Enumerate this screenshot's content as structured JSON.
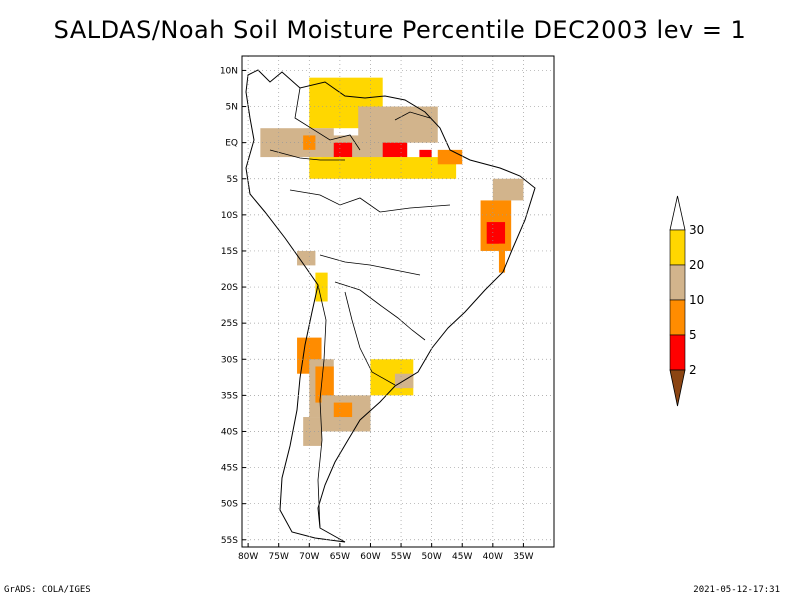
{
  "title": "SALDAS/Noah Soil Moisture Percentile DEC2003 lev = 1",
  "footer": {
    "left": "GrADS: COLA/IGES",
    "right": "2021-05-12-17:31"
  },
  "map": {
    "lon_range": [
      -81,
      -30
    ],
    "lat_range": [
      -56,
      12
    ],
    "lat_ticks": [
      {
        "value": 10,
        "label": "10N"
      },
      {
        "value": 5,
        "label": "5N"
      },
      {
        "value": 0,
        "label": "EQ"
      },
      {
        "value": -5,
        "label": "5S"
      },
      {
        "value": -10,
        "label": "10S"
      },
      {
        "value": -15,
        "label": "15S"
      },
      {
        "value": -20,
        "label": "20S"
      },
      {
        "value": -25,
        "label": "25S"
      },
      {
        "value": -30,
        "label": "30S"
      },
      {
        "value": -35,
        "label": "35S"
      },
      {
        "value": -40,
        "label": "40S"
      },
      {
        "value": -45,
        "label": "45S"
      },
      {
        "value": -50,
        "label": "50S"
      },
      {
        "value": -55,
        "label": "55S"
      }
    ],
    "lon_ticks": [
      {
        "value": -80,
        "label": "80W"
      },
      {
        "value": -75,
        "label": "75W"
      },
      {
        "value": -70,
        "label": "70W"
      },
      {
        "value": -65,
        "label": "65W"
      },
      {
        "value": -60,
        "label": "60W"
      },
      {
        "value": -55,
        "label": "55W"
      },
      {
        "value": -50,
        "label": "50W"
      },
      {
        "value": -45,
        "label": "45W"
      },
      {
        "value": -40,
        "label": "40W"
      },
      {
        "value": -35,
        "label": "35W"
      }
    ],
    "grid": true,
    "regions": [
      {
        "lon": [
          -70,
          -58
        ],
        "lat": [
          9,
          2
        ],
        "band": "p20_30"
      },
      {
        "lon": [
          -78,
          -66
        ],
        "lat": [
          2,
          -2
        ],
        "band": "p10_20"
      },
      {
        "lon": [
          -71,
          -69
        ],
        "lat": [
          1,
          -1
        ],
        "band": "p5_10"
      },
      {
        "lon": [
          -68,
          -60
        ],
        "lat": [
          1,
          -3
        ],
        "band": "p10_20"
      },
      {
        "lon": [
          -66,
          -63
        ],
        "lat": [
          0,
          -2
        ],
        "band": "p2_5"
      },
      {
        "lon": [
          -62,
          -54
        ],
        "lat": [
          5,
          -4
        ],
        "band": "p10_20"
      },
      {
        "lon": [
          -55,
          -49
        ],
        "lat": [
          5,
          0
        ],
        "band": "p10_20"
      },
      {
        "lon": [
          -58,
          -54
        ],
        "lat": [
          0,
          -2
        ],
        "band": "p2_5"
      },
      {
        "lon": [
          -52,
          -50
        ],
        "lat": [
          -1,
          -3
        ],
        "band": "p2_5"
      },
      {
        "lon": [
          -70,
          -46
        ],
        "lat": [
          -2,
          -5
        ],
        "band": "p20_30"
      },
      {
        "lon": [
          -49,
          -45
        ],
        "lat": [
          -1,
          -3
        ],
        "band": "p5_10"
      },
      {
        "lon": [
          -40,
          -35
        ],
        "lat": [
          -5,
          -8
        ],
        "band": "p10_20"
      },
      {
        "lon": [
          -42,
          -37
        ],
        "lat": [
          -8,
          -15
        ],
        "band": "p5_10"
      },
      {
        "lon": [
          -41,
          -38
        ],
        "lat": [
          -11,
          -14
        ],
        "band": "p2_5"
      },
      {
        "lon": [
          -39,
          -38
        ],
        "lat": [
          -14,
          -18
        ],
        "band": "p5_10"
      },
      {
        "lon": [
          -72,
          -69
        ],
        "lat": [
          -15,
          -17
        ],
        "band": "p10_20"
      },
      {
        "lon": [
          -69,
          -67
        ],
        "lat": [
          -18,
          -22
        ],
        "band": "p20_30"
      },
      {
        "lon": [
          -72,
          -68
        ],
        "lat": [
          -27,
          -32
        ],
        "band": "p5_10"
      },
      {
        "lon": [
          -70,
          -66
        ],
        "lat": [
          -30,
          -38
        ],
        "band": "p10_20"
      },
      {
        "lon": [
          -69,
          -66
        ],
        "lat": [
          -31,
          -36
        ],
        "band": "p5_10"
      },
      {
        "lon": [
          -68,
          -60
        ],
        "lat": [
          -35,
          -40
        ],
        "band": "p10_20"
      },
      {
        "lon": [
          -66,
          -63
        ],
        "lat": [
          -36,
          -38
        ],
        "band": "p5_10"
      },
      {
        "lon": [
          -71,
          -68
        ],
        "lat": [
          -38,
          -42
        ],
        "band": "p10_20"
      },
      {
        "lon": [
          -60,
          -53
        ],
        "lat": [
          -30,
          -35
        ],
        "band": "p20_30"
      },
      {
        "lon": [
          -56,
          -53
        ],
        "lat": [
          -32,
          -34
        ],
        "band": "p10_20"
      }
    ]
  },
  "colorbar": {
    "labels": [
      "30",
      "20",
      "10",
      "5",
      "2"
    ],
    "colors": {
      "above": "#ffffff",
      "p20_30": "#ffd700",
      "p10_20": "#d2b48c",
      "p5_10": "#ff8c00",
      "p2_5": "#ff0000",
      "below": "#8b4513"
    }
  }
}
